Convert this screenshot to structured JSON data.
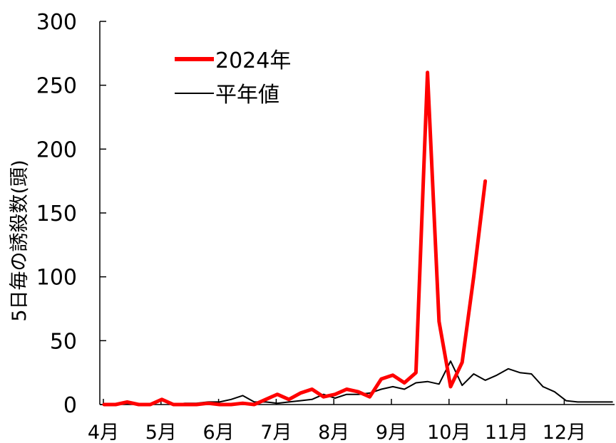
{
  "chart_data": {
    "type": "line",
    "title": "",
    "xlabel": "",
    "ylabel": "5日毎の誘殺数(頭)",
    "ylim": [
      0,
      300
    ],
    "yticks": [
      0,
      50,
      100,
      150,
      200,
      250,
      300
    ],
    "xlim": [
      0,
      45
    ],
    "categories": [
      "4月",
      "5月",
      "6月",
      "7月",
      "8月",
      "9月",
      "10月",
      "11月",
      "12月"
    ],
    "grid": false,
    "legend_position": "top-left",
    "series": [
      {
        "name": "2024年",
        "color": "#ff0000",
        "x": [
          0,
          1,
          2,
          3,
          4,
          5,
          6,
          7,
          8,
          9,
          10,
          11,
          12,
          13,
          14,
          15,
          16,
          17,
          18,
          19,
          20,
          21,
          22,
          23,
          24,
          25,
          26,
          27,
          28,
          29,
          30,
          31,
          32,
          33,
          34,
          35,
          36,
          37,
          38,
          39,
          40,
          41,
          42,
          43,
          44
        ],
        "values": [
          0,
          0,
          2,
          0,
          0,
          4,
          0,
          0,
          0,
          1,
          0,
          0,
          1,
          0,
          4,
          8,
          4,
          9,
          12,
          6,
          8,
          12,
          10,
          6,
          20,
          23,
          17,
          25,
          260,
          65,
          14,
          33,
          100,
          175,
          null,
          null,
          null,
          null,
          null,
          null,
          null,
          null,
          null,
          null,
          null
        ]
      },
      {
        "name": "平年値",
        "color": "#000000",
        "x": [
          0,
          1,
          2,
          3,
          4,
          5,
          6,
          7,
          8,
          9,
          10,
          11,
          12,
          13,
          14,
          15,
          16,
          17,
          18,
          19,
          20,
          21,
          22,
          23,
          24,
          25,
          26,
          27,
          28,
          29,
          30,
          31,
          32,
          33,
          34,
          35,
          36,
          37,
          38,
          39,
          40,
          41,
          42,
          43,
          44
        ],
        "values": [
          0,
          0,
          1,
          0,
          0,
          3,
          0,
          1,
          1,
          2,
          2,
          4,
          7,
          2,
          2,
          1,
          2,
          3,
          4,
          8,
          5,
          8,
          8,
          9,
          12,
          14,
          12,
          17,
          18,
          16,
          34,
          15,
          24,
          19,
          23,
          28,
          25,
          24,
          14,
          10,
          3,
          2,
          2,
          2,
          2
        ]
      }
    ]
  }
}
